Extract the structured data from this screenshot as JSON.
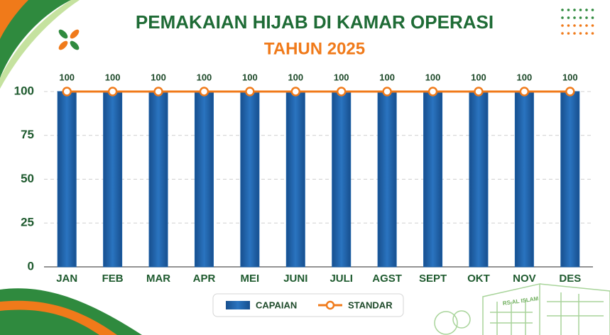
{
  "chart_data": {
    "type": "bar",
    "title": "PEMAKAIAN HIJAB DI KAMAR OPERASI",
    "subtitle": "TAHUN 2025",
    "categories": [
      "JAN",
      "FEB",
      "MAR",
      "APR",
      "MEI",
      "JUNI",
      "JULI",
      "AGST",
      "SEPT",
      "OKT",
      "NOV",
      "DES"
    ],
    "series": [
      {
        "name": "CAPAIAN",
        "type": "bar",
        "color": "#1b5fa6",
        "values": [
          100,
          100,
          100,
          100,
          100,
          100,
          100,
          100,
          100,
          100,
          100,
          100
        ]
      },
      {
        "name": "STANDAR",
        "type": "line",
        "color": "#f07a1a",
        "values": [
          100,
          100,
          100,
          100,
          100,
          100,
          100,
          100,
          100,
          100,
          100,
          100
        ]
      }
    ],
    "ylim": [
      0,
      100
    ],
    "yticks": [
      0,
      25,
      50,
      75,
      100
    ],
    "grid": true,
    "legend": "bottom"
  },
  "decoration": {
    "building_sign": "RS AL ISLAM"
  }
}
